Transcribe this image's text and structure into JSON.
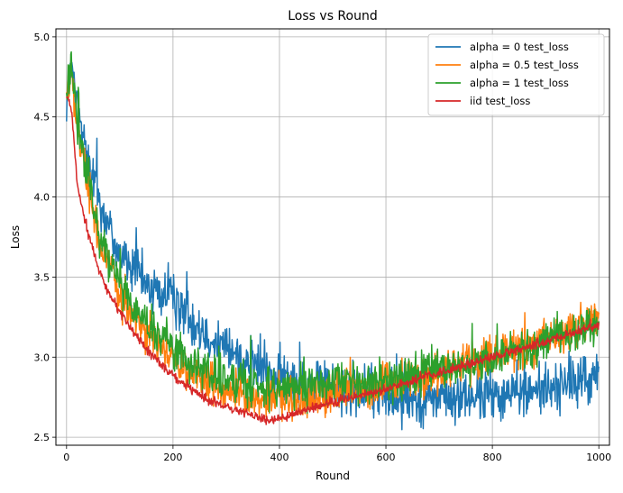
{
  "chart_data": {
    "type": "line",
    "title": "Loss vs Round",
    "xlabel": "Round",
    "ylabel": "Loss",
    "xlim": [
      -20,
      1020
    ],
    "ylim": [
      2.45,
      5.05
    ],
    "xticks": [
      0,
      200,
      400,
      600,
      800,
      1000
    ],
    "yticks": [
      2.5,
      3.0,
      3.5,
      4.0,
      4.5,
      5.0
    ],
    "xtick_labels": [
      "0",
      "200",
      "400",
      "600",
      "800",
      "1000"
    ],
    "ytick_labels": [
      "2.5",
      "3.0",
      "3.5",
      "4.0",
      "4.5",
      "5.0"
    ],
    "grid": true,
    "legend_position": "top-right",
    "series": [
      {
        "name": "alpha = 0 test_loss",
        "color": "#1f77b4",
        "noise": 0.14,
        "points": [
          [
            0,
            4.62
          ],
          [
            10,
            4.78
          ],
          [
            20,
            4.55
          ],
          [
            40,
            4.25
          ],
          [
            60,
            4.0
          ],
          [
            80,
            3.8
          ],
          [
            100,
            3.65
          ],
          [
            150,
            3.45
          ],
          [
            200,
            3.35
          ],
          [
            250,
            3.2
          ],
          [
            300,
            3.05
          ],
          [
            350,
            2.95
          ],
          [
            400,
            2.88
          ],
          [
            450,
            2.84
          ],
          [
            500,
            2.8
          ],
          [
            600,
            2.76
          ],
          [
            700,
            2.74
          ],
          [
            800,
            2.76
          ],
          [
            900,
            2.8
          ],
          [
            1000,
            2.88
          ]
        ]
      },
      {
        "name": "alpha = 0.5 test_loss",
        "color": "#ff7f0e",
        "noise": 0.11,
        "points": [
          [
            0,
            4.65
          ],
          [
            10,
            4.75
          ],
          [
            20,
            4.4
          ],
          [
            40,
            4.1
          ],
          [
            60,
            3.75
          ],
          [
            80,
            3.55
          ],
          [
            100,
            3.4
          ],
          [
            150,
            3.15
          ],
          [
            200,
            2.98
          ],
          [
            250,
            2.85
          ],
          [
            300,
            2.78
          ],
          [
            350,
            2.75
          ],
          [
            400,
            2.74
          ],
          [
            450,
            2.74
          ],
          [
            500,
            2.77
          ],
          [
            600,
            2.82
          ],
          [
            700,
            2.9
          ],
          [
            800,
            3.0
          ],
          [
            900,
            3.1
          ],
          [
            1000,
            3.25
          ]
        ]
      },
      {
        "name": "alpha = 1 test_loss",
        "color": "#2ca02c",
        "noise": 0.11,
        "points": [
          [
            0,
            4.65
          ],
          [
            10,
            4.8
          ],
          [
            20,
            4.45
          ],
          [
            40,
            4.15
          ],
          [
            60,
            3.8
          ],
          [
            80,
            3.6
          ],
          [
            100,
            3.45
          ],
          [
            150,
            3.2
          ],
          [
            200,
            3.05
          ],
          [
            250,
            2.92
          ],
          [
            300,
            2.85
          ],
          [
            350,
            2.82
          ],
          [
            400,
            2.81
          ],
          [
            450,
            2.82
          ],
          [
            500,
            2.84
          ],
          [
            600,
            2.86
          ],
          [
            700,
            2.92
          ],
          [
            800,
            3.0
          ],
          [
            900,
            3.1
          ],
          [
            1000,
            3.2
          ]
        ]
      },
      {
        "name": "iid test_loss",
        "color": "#d62728",
        "noise": 0.025,
        "points": [
          [
            0,
            4.62
          ],
          [
            5,
            4.6
          ],
          [
            10,
            4.52
          ],
          [
            15,
            4.3
          ],
          [
            20,
            4.1
          ],
          [
            30,
            3.92
          ],
          [
            40,
            3.78
          ],
          [
            60,
            3.55
          ],
          [
            80,
            3.4
          ],
          [
            100,
            3.28
          ],
          [
            150,
            3.05
          ],
          [
            200,
            2.88
          ],
          [
            250,
            2.76
          ],
          [
            300,
            2.69
          ],
          [
            350,
            2.64
          ],
          [
            380,
            2.6
          ],
          [
            400,
            2.62
          ],
          [
            450,
            2.67
          ],
          [
            500,
            2.72
          ],
          [
            600,
            2.8
          ],
          [
            700,
            2.9
          ],
          [
            800,
            3.0
          ],
          [
            900,
            3.1
          ],
          [
            1000,
            3.2
          ]
        ]
      }
    ]
  }
}
